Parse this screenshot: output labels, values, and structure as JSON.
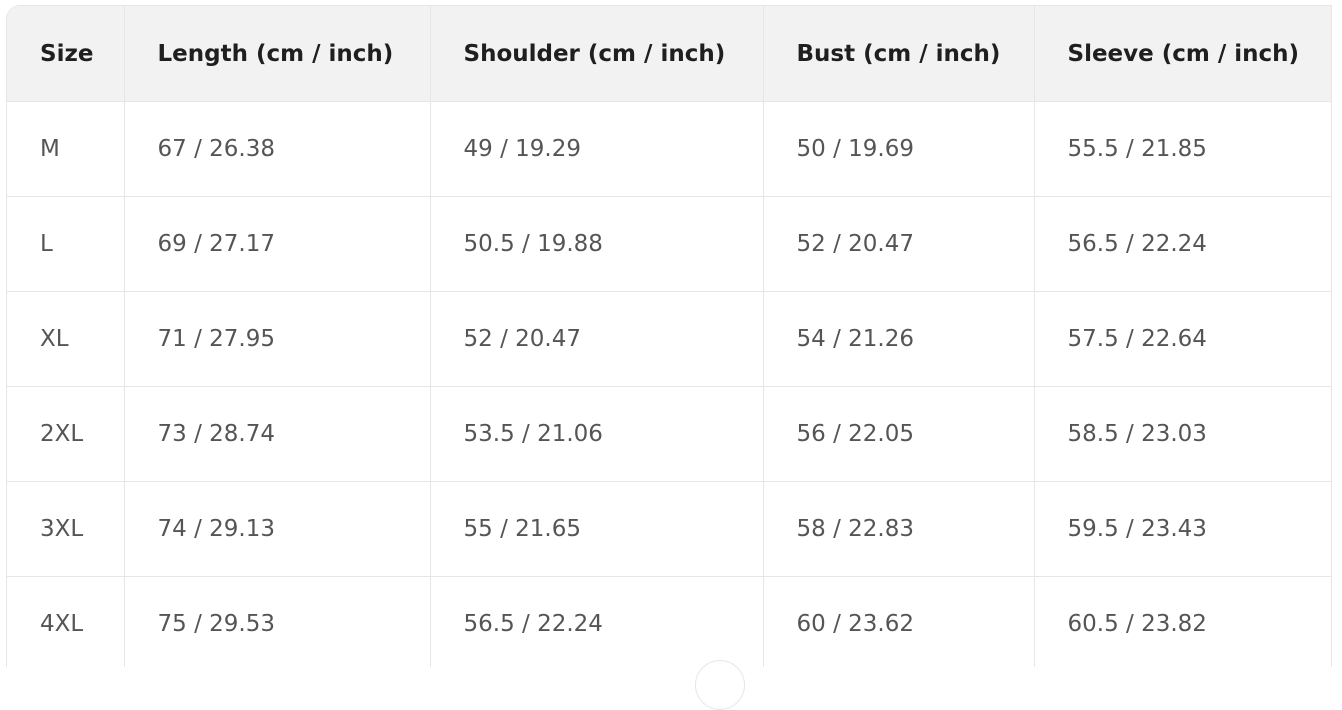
{
  "table": {
    "headers": [
      "Size",
      "Length (cm / inch)",
      "Shoulder (cm / inch)",
      "Bust (cm / inch)",
      "Sleeve (cm / inch)"
    ],
    "rows": [
      [
        "M",
        "67 / 26.38",
        "49 / 19.29",
        "50 / 19.69",
        "55.5 / 21.85"
      ],
      [
        "L",
        "69 / 27.17",
        "50.5 / 19.88",
        "52 / 20.47",
        "56.5 / 22.24"
      ],
      [
        "XL",
        "71 / 27.95",
        "52 / 20.47",
        "54 / 21.26",
        "57.5 / 22.64"
      ],
      [
        "2XL",
        "73 / 28.74",
        "53.5 / 21.06",
        "56 / 22.05",
        "58.5 / 23.03"
      ],
      [
        "3XL",
        "74 / 29.13",
        "55 / 21.65",
        "58 / 22.83",
        "59.5 / 23.43"
      ],
      [
        "4XL",
        "75 / 29.53",
        "56.5 / 22.24",
        "60 / 23.62",
        "60.5 / 23.82"
      ]
    ]
  }
}
